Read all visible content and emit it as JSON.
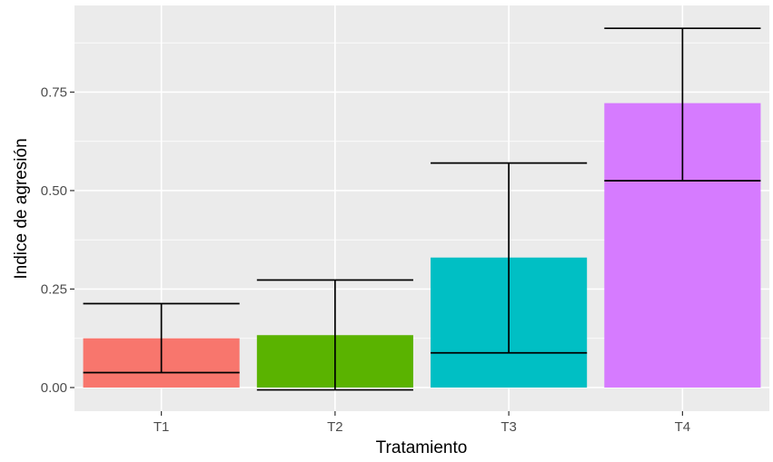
{
  "chart_data": {
    "type": "bar",
    "title": "",
    "xlabel": "Tratamiento",
    "ylabel": "Indice de agresión",
    "categories": [
      "T1",
      "T2",
      "T3",
      "T4"
    ],
    "values": [
      0.125,
      0.133,
      0.33,
      0.722
    ],
    "error_bars": [
      {
        "lower": 0.038,
        "upper": 0.213
      },
      {
        "lower": -0.006,
        "upper": 0.273
      },
      {
        "lower": 0.088,
        "upper": 0.57
      },
      {
        "lower": 0.525,
        "upper": 0.912
      }
    ],
    "colors": [
      "#F8766D",
      "#5AB300",
      "#00BFC4",
      "#D67BFF"
    ],
    "ylim": [
      -0.06,
      0.97
    ],
    "yticks": [
      0.0,
      0.25,
      0.5,
      0.75
    ],
    "ytick_labels": [
      "0.00",
      "0.25",
      "0.50",
      "0.75"
    ],
    "grid": true,
    "panel_background": "#EBEBEB",
    "grid_color": "#FFFFFF",
    "legend": "none"
  }
}
